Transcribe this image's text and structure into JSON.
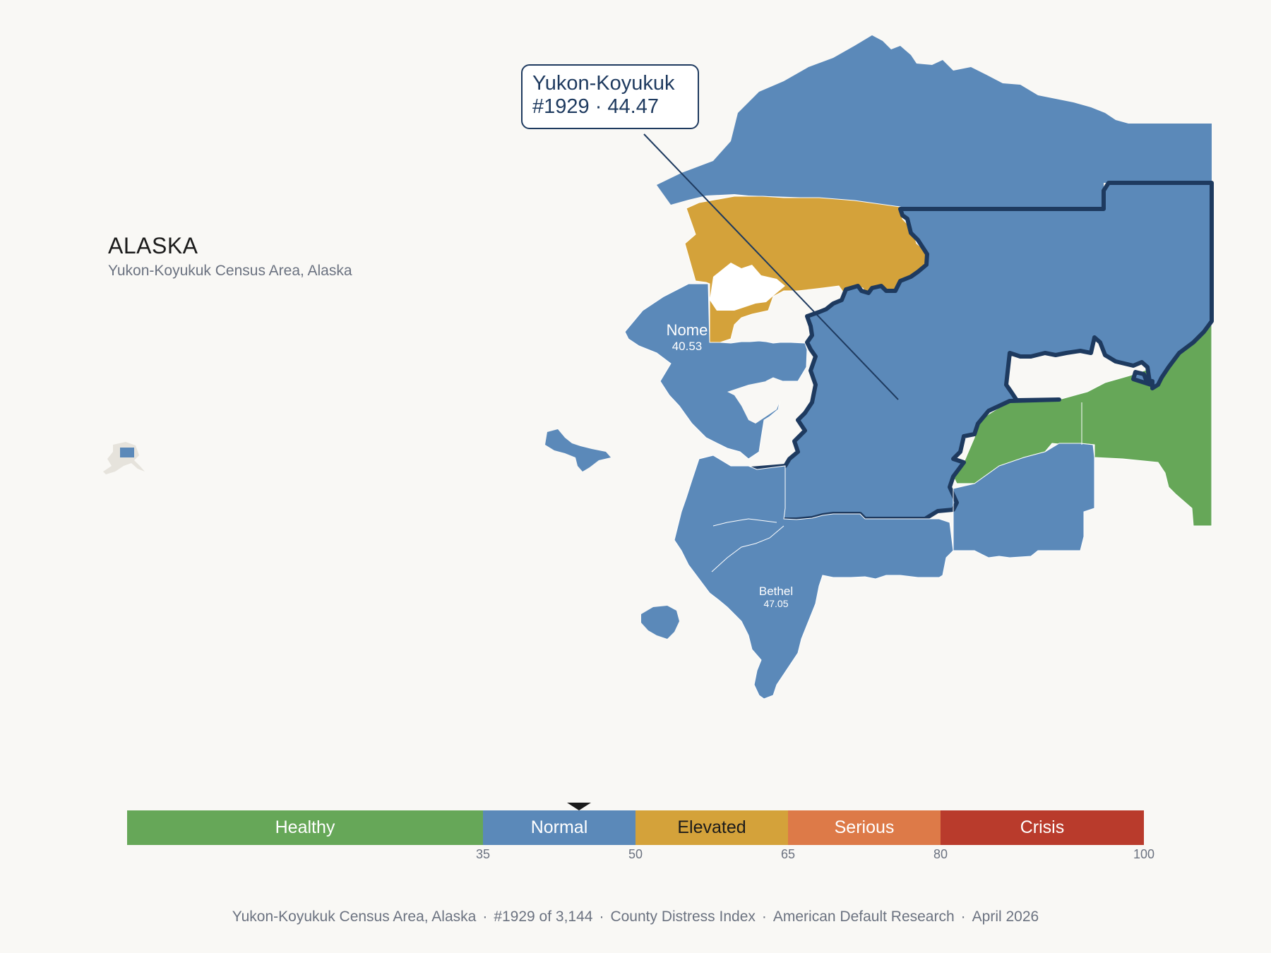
{
  "state": {
    "title": "ALASKA",
    "subtitle": "Yukon-Koyukuk Census Area, Alaska"
  },
  "callout": {
    "name": "Yukon-Koyukuk",
    "rank_value": "#1929 · 44.47"
  },
  "map_labels": {
    "nome_name": "Nome",
    "nome_value": "40.53",
    "bethel_name": "Bethel",
    "bethel_value": "47.05"
  },
  "colors": {
    "healthy": "#66a758",
    "normal": "#5b89b9",
    "elevated": "#d4a23a",
    "serious": "#dd7a48",
    "crisis": "#b93b2c",
    "highlight_outline": "#1e3a5f",
    "background": "#f9f8f5"
  },
  "legend": {
    "segments": [
      {
        "label": "Healthy",
        "from": 0,
        "to": 35,
        "color": "#66a758",
        "text_color": "#ffffff"
      },
      {
        "label": "Normal",
        "from": 35,
        "to": 50,
        "color": "#5b89b9",
        "text_color": "#ffffff"
      },
      {
        "label": "Elevated",
        "from": 50,
        "to": 65,
        "color": "#d4a23a",
        "text_color": "#1b1b1b"
      },
      {
        "label": "Serious",
        "from": 65,
        "to": 80,
        "color": "#dd7a48",
        "text_color": "#ffffff"
      },
      {
        "label": "Crisis",
        "from": 80,
        "to": 100,
        "color": "#b93b2c",
        "text_color": "#ffffff"
      }
    ],
    "ticks": [
      "35",
      "50",
      "65",
      "80",
      "100"
    ],
    "marker_value": 44.47
  },
  "footer": {
    "county": "Yukon-Koyukuk Census Area, Alaska",
    "rank": "#1929 of 3,144",
    "index": "County Distress Index",
    "source": "American Default Research",
    "date": "April 2026"
  }
}
